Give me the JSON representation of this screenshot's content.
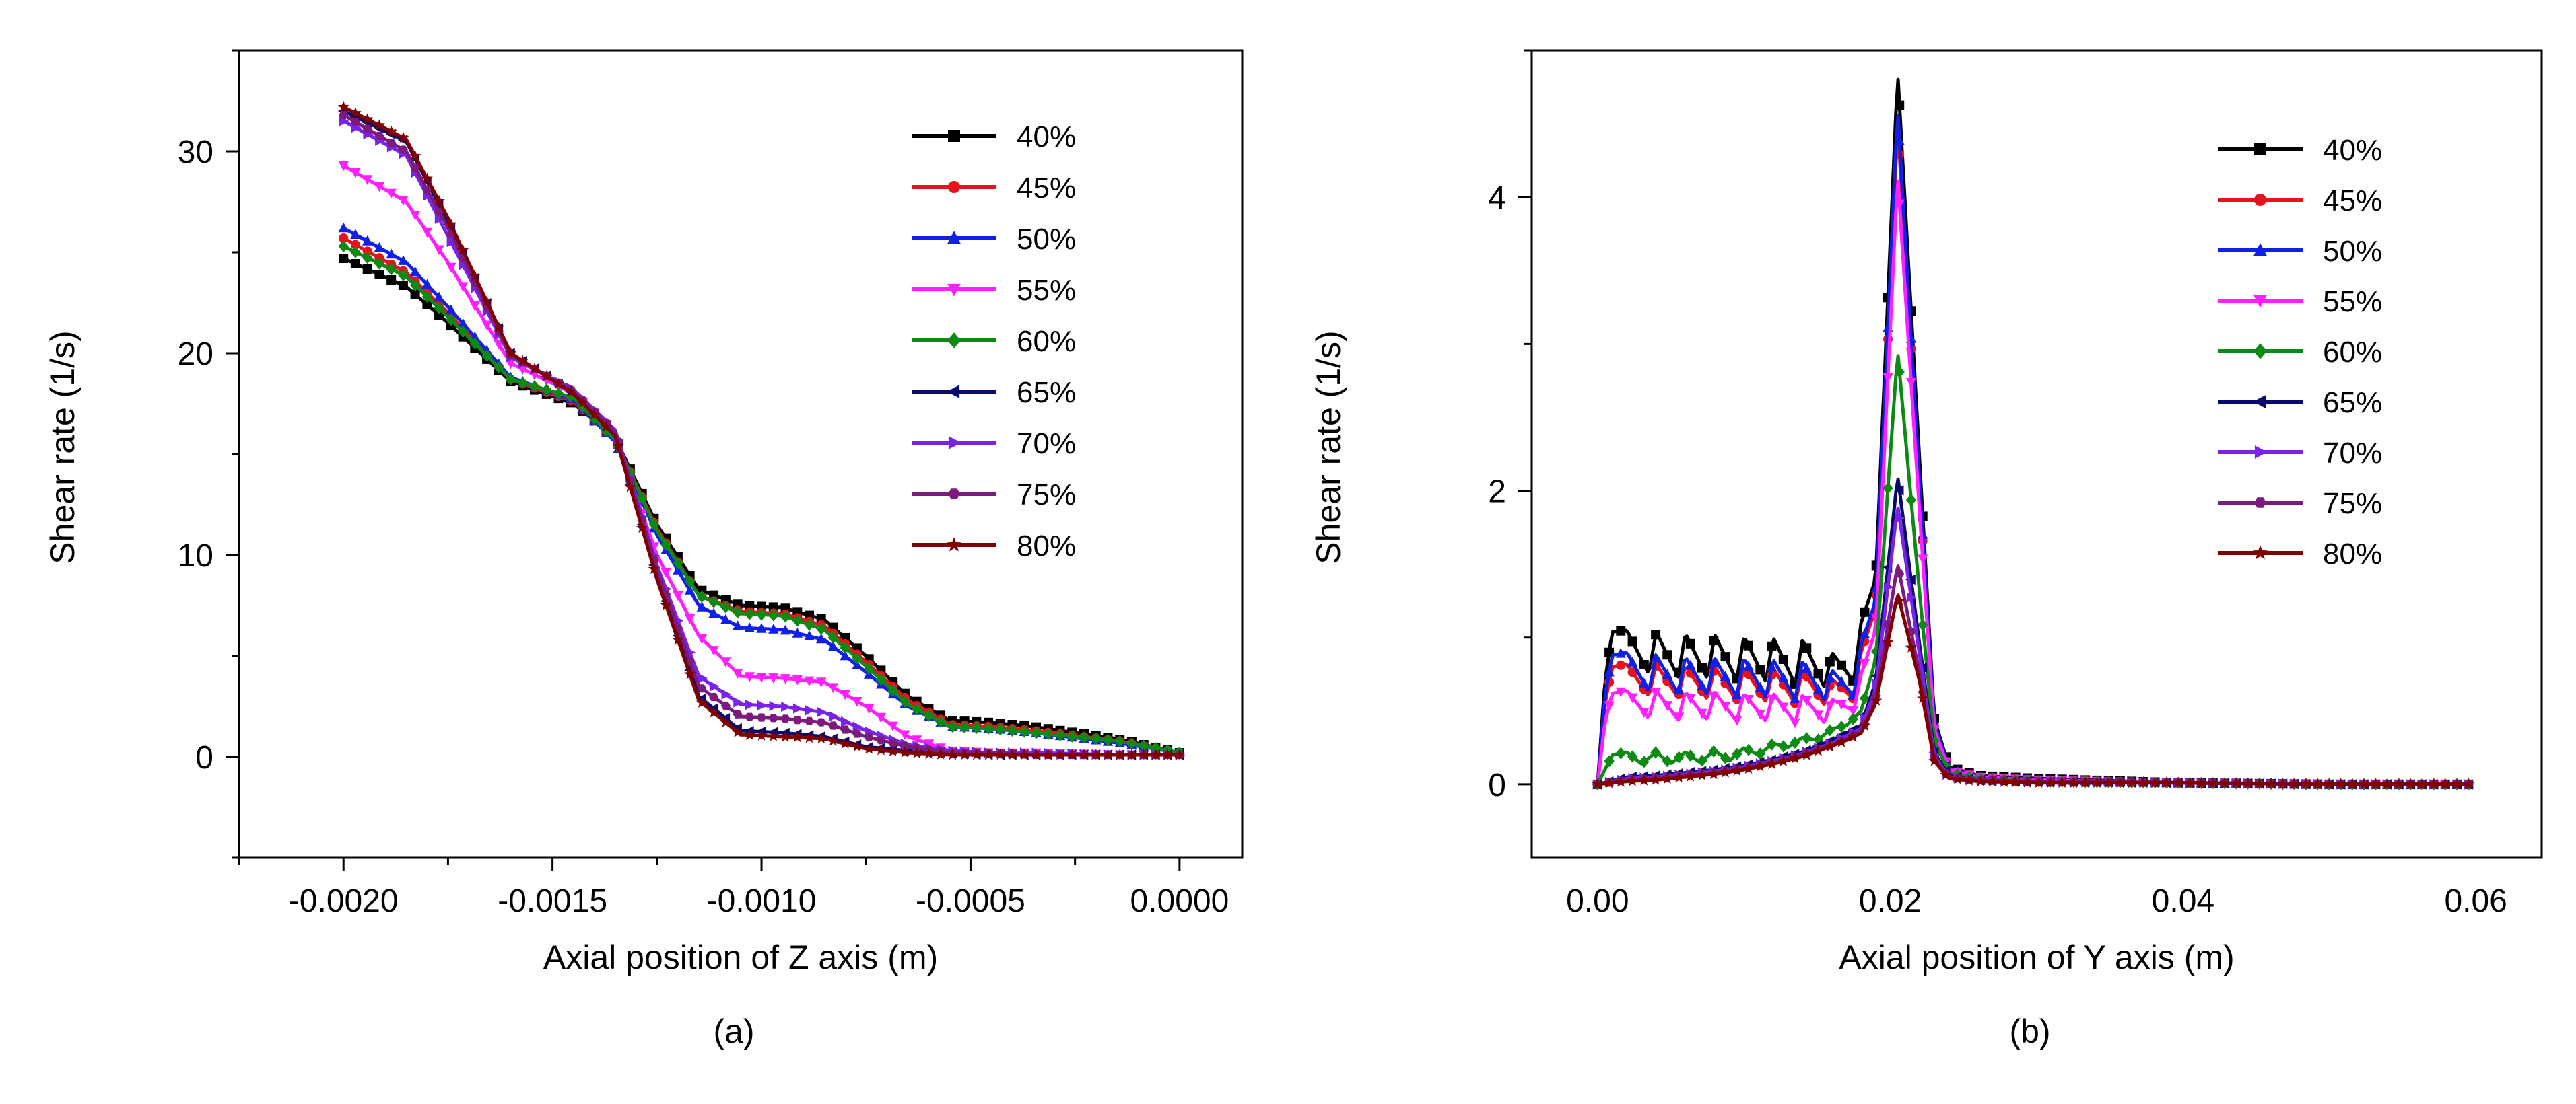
{
  "chart_data": [
    {
      "id": "a",
      "type": "line",
      "panel_label": "(a)",
      "xlabel": "Axial position of Z axis (m)",
      "ylabel": "Shear rate (1/s)",
      "xlim": [
        -0.00225,
        0.00015
      ],
      "ylim": [
        -5,
        35
      ],
      "xticks": [
        -0.002,
        -0.0015,
        -0.001,
        -0.0005,
        0.0
      ],
      "xtick_labels": [
        "-0.0020",
        "-0.0015",
        "-0.0010",
        "-0.0005",
        "0.0000"
      ],
      "yticks": [
        0,
        10,
        20,
        30
      ],
      "ytick_labels": [
        "0",
        "10",
        "20",
        "30"
      ],
      "legend_position": "top-right",
      "marker_count": 70,
      "series": [
        {
          "name": "40%",
          "color": "#000000",
          "marker": "square",
          "x": [
            -0.002,
            -0.00185,
            -0.00175,
            -0.0016,
            -0.00145,
            -0.00135,
            -0.00125,
            -0.00115,
            -0.00105,
            -0.00095,
            -0.00085,
            -0.00075,
            -0.00065,
            -0.00055,
            -0.00045,
            -0.00035,
            -0.00015,
            0.0
          ],
          "y": [
            24.7,
            23.3,
            21.5,
            18.6,
            17.5,
            15.8,
            11.5,
            8.3,
            7.5,
            7.4,
            6.8,
            5,
            3,
            1.8,
            1.7,
            1.5,
            0.9,
            0.2
          ]
        },
        {
          "name": "45%",
          "color": "#e8111d",
          "marker": "circle",
          "x": [
            -0.002,
            -0.00185,
            -0.00175,
            -0.0016,
            -0.00145,
            -0.00135,
            -0.00125,
            -0.00115,
            -0.00105,
            -0.00095,
            -0.00085,
            -0.00075,
            -0.00065,
            -0.00055,
            -0.00045,
            -0.00035,
            -0.00015,
            0.0
          ],
          "y": [
            25.7,
            24,
            22,
            18.7,
            17.6,
            15.7,
            11.3,
            8,
            7.2,
            7.1,
            6.5,
            4.7,
            2.8,
            1.6,
            1.5,
            1.3,
            0.8,
            0.2
          ]
        },
        {
          "name": "50%",
          "color": "#1020e6",
          "marker": "triangle-up",
          "x": [
            -0.002,
            -0.00185,
            -0.00175,
            -0.0016,
            -0.00145,
            -0.00135,
            -0.00125,
            -0.00115,
            -0.00105,
            -0.00095,
            -0.00085,
            -0.00075,
            -0.00065,
            -0.00055,
            -0.00045,
            -0.00035,
            -0.00015,
            0.0
          ],
          "y": [
            26.2,
            24.5,
            22.3,
            18.8,
            17.7,
            15.6,
            11,
            7.5,
            6.4,
            6.3,
            5.8,
            4.2,
            2.5,
            1.5,
            1.4,
            1.2,
            0.7,
            0.2
          ]
        },
        {
          "name": "55%",
          "color": "#ff1fff",
          "marker": "triangle-down",
          "x": [
            -0.002,
            -0.00185,
            -0.00175,
            -0.0016,
            -0.00145,
            -0.00135,
            -0.00125,
            -0.00115,
            -0.00105,
            -0.00095,
            -0.00085,
            -0.00075,
            -0.00065,
            -0.00055,
            -0.00045,
            -0.00035,
            -0.00015,
            0.0
          ],
          "y": [
            29.3,
            27.5,
            24.5,
            19.5,
            18,
            15.8,
            10,
            6,
            4,
            3.9,
            3.7,
            2.5,
            1,
            0.3,
            0.2,
            0.2,
            0.1,
            0.1
          ]
        },
        {
          "name": "60%",
          "color": "#0d8a14",
          "marker": "diamond",
          "x": [
            -0.002,
            -0.00185,
            -0.00175,
            -0.0016,
            -0.00145,
            -0.00135,
            -0.00125,
            -0.00115,
            -0.00105,
            -0.00095,
            -0.00085,
            -0.00075,
            -0.00065,
            -0.00055,
            -0.00045,
            -0.00035,
            -0.00015,
            0.0
          ],
          "y": [
            25.3,
            23.8,
            21.8,
            18.7,
            17.8,
            15.7,
            11.2,
            8,
            7.1,
            7,
            6.3,
            4.5,
            2.6,
            1.5,
            1.4,
            1.2,
            0.8,
            0.2
          ]
        },
        {
          "name": "65%",
          "color": "#0a0a6e",
          "marker": "triangle-left",
          "x": [
            -0.002,
            -0.00185,
            -0.00175,
            -0.0016,
            -0.00145,
            -0.00135,
            -0.00125,
            -0.00115,
            -0.00105,
            -0.00095,
            -0.00085,
            -0.00075,
            -0.00065,
            -0.00055,
            -0.00045,
            -0.00035,
            -0.00015,
            0.0
          ],
          "y": [
            32,
            30.5,
            26.5,
            20,
            18,
            16,
            9,
            3,
            1.3,
            1.2,
            1,
            0.5,
            0.3,
            0.2,
            0.1,
            0.1,
            0.1,
            0.1
          ]
        },
        {
          "name": "70%",
          "color": "#7a22e8",
          "marker": "triangle-right",
          "x": [
            -0.002,
            -0.00185,
            -0.00175,
            -0.0016,
            -0.00145,
            -0.00135,
            -0.00125,
            -0.00115,
            -0.00105,
            -0.00095,
            -0.00085,
            -0.00075,
            -0.00065,
            -0.00055,
            -0.00045,
            -0.00035,
            -0.00015,
            0.0
          ],
          "y": [
            31.5,
            29.8,
            25.8,
            19.8,
            18.2,
            16.2,
            9.5,
            4,
            2.6,
            2.5,
            2.2,
            1.3,
            0.6,
            0.3,
            0.2,
            0.2,
            0.1,
            0.1
          ]
        },
        {
          "name": "75%",
          "color": "#7d1a7d",
          "marker": "hexagon",
          "x": [
            -0.002,
            -0.00185,
            -0.00175,
            -0.0016,
            -0.00145,
            -0.00135,
            -0.00125,
            -0.00115,
            -0.00105,
            -0.00095,
            -0.00085,
            -0.00075,
            -0.00065,
            -0.00055,
            -0.00045,
            -0.00035,
            -0.00015,
            0.0
          ],
          "y": [
            31.8,
            30,
            26.2,
            19.9,
            18.1,
            16.1,
            9.3,
            3.5,
            2,
            1.9,
            1.7,
            1,
            0.5,
            0.2,
            0.2,
            0.1,
            0.1,
            0.1
          ]
        },
        {
          "name": "80%",
          "color": "#800000",
          "marker": "star",
          "x": [
            -0.002,
            -0.00185,
            -0.00175,
            -0.0016,
            -0.00145,
            -0.00135,
            -0.00125,
            -0.00115,
            -0.00105,
            -0.00095,
            -0.00085,
            -0.00075,
            -0.00065,
            -0.00055,
            -0.00045,
            -0.00035,
            -0.00015,
            0.0
          ],
          "y": [
            32.2,
            30.6,
            26.7,
            20,
            18,
            15.9,
            8.8,
            2.8,
            1.1,
            1,
            0.9,
            0.4,
            0.2,
            0.1,
            0.1,
            0.1,
            0.1,
            0.1
          ]
        }
      ]
    },
    {
      "id": "b",
      "type": "line",
      "panel_label": "(b)",
      "xlabel": "Axial position of Y axis (m)",
      "ylabel": "Shear rate (1/s)",
      "xlim": [
        -0.0045,
        0.0645
      ],
      "ylim": [
        -0.5,
        5.0
      ],
      "xticks": [
        0.0,
        0.02,
        0.04,
        0.06
      ],
      "xtick_labels": [
        "0.00",
        "0.02",
        "0.04",
        "0.06"
      ],
      "yticks": [
        0,
        2,
        4
      ],
      "ytick_labels": [
        "0",
        "2",
        "4"
      ],
      "legend_position": "top-right",
      "marker_count": 75,
      "series": [
        {
          "name": "40%",
          "color": "#000000",
          "marker": "square",
          "x": [
            0,
            0.0005,
            0.001,
            0.002,
            0.0035,
            0.004,
            0.0055,
            0.006,
            0.0075,
            0.008,
            0.0095,
            0.01,
            0.0115,
            0.012,
            0.0135,
            0.014,
            0.0155,
            0.016,
            0.0175,
            0.018,
            0.019,
            0.0205,
            0.022,
            0.023,
            0.024,
            0.026,
            0.03,
            0.04,
            0.05,
            0.0595
          ],
          "y": [
            0,
            0.7,
            1.04,
            1.05,
            0.75,
            1.04,
            0.73,
            1.03,
            0.72,
            1.02,
            0.71,
            1.01,
            0.7,
            1.0,
            0.68,
            0.99,
            0.66,
            0.9,
            0.7,
            1.1,
            1.4,
            4.85,
            2.2,
            0.45,
            0.12,
            0.06,
            0.04,
            0.01,
            0,
            0
          ]
        },
        {
          "name": "45%",
          "color": "#e8111d",
          "marker": "circle",
          "x": [
            0,
            0.0005,
            0.001,
            0.002,
            0.0035,
            0.004,
            0.0055,
            0.006,
            0.0075,
            0.008,
            0.0095,
            0.01,
            0.0115,
            0.012,
            0.0135,
            0.014,
            0.0155,
            0.016,
            0.0175,
            0.018,
            0.019,
            0.0205,
            0.022,
            0.023,
            0.024,
            0.026,
            0.03,
            0.04,
            0.05,
            0.0595
          ],
          "y": [
            0,
            0.55,
            0.8,
            0.82,
            0.6,
            0.82,
            0.59,
            0.81,
            0.58,
            0.8,
            0.57,
            0.8,
            0.56,
            0.79,
            0.55,
            0.78,
            0.54,
            0.72,
            0.58,
            0.9,
            1.2,
            4.5,
            2.0,
            0.4,
            0.1,
            0.05,
            0.03,
            0.01,
            0,
            0
          ]
        },
        {
          "name": "50%",
          "color": "#1020e6",
          "marker": "triangle-up",
          "x": [
            0,
            0.0005,
            0.001,
            0.002,
            0.0035,
            0.004,
            0.0055,
            0.006,
            0.0075,
            0.008,
            0.0095,
            0.01,
            0.0115,
            0.012,
            0.0135,
            0.014,
            0.0155,
            0.016,
            0.0175,
            0.018,
            0.019,
            0.0205,
            0.022,
            0.023,
            0.024,
            0.026,
            0.03,
            0.04,
            0.05,
            0.0595
          ],
          "y": [
            0,
            0.6,
            0.88,
            0.9,
            0.63,
            0.88,
            0.62,
            0.87,
            0.61,
            0.86,
            0.6,
            0.86,
            0.59,
            0.85,
            0.58,
            0.84,
            0.57,
            0.78,
            0.6,
            0.95,
            1.25,
            4.6,
            2.05,
            0.42,
            0.11,
            0.05,
            0.03,
            0.01,
            0,
            0
          ]
        },
        {
          "name": "55%",
          "color": "#ff1fff",
          "marker": "triangle-down",
          "x": [
            0,
            0.0005,
            0.001,
            0.002,
            0.0035,
            0.004,
            0.0055,
            0.006,
            0.0075,
            0.008,
            0.0095,
            0.01,
            0.0115,
            0.012,
            0.0135,
            0.014,
            0.0155,
            0.016,
            0.0175,
            0.018,
            0.019,
            0.0205,
            0.022,
            0.023,
            0.024,
            0.026,
            0.03,
            0.04,
            0.05,
            0.0595
          ],
          "y": [
            0,
            0.42,
            0.62,
            0.64,
            0.45,
            0.64,
            0.44,
            0.63,
            0.44,
            0.63,
            0.43,
            0.62,
            0.43,
            0.62,
            0.42,
            0.61,
            0.42,
            0.58,
            0.5,
            0.75,
            1.05,
            4.15,
            1.85,
            0.38,
            0.1,
            0.05,
            0.03,
            0.01,
            0,
            0
          ]
        },
        {
          "name": "60%",
          "color": "#0d8a14",
          "marker": "diamond",
          "x": [
            0,
            0.001,
            0.002,
            0.003,
            0.004,
            0.005,
            0.006,
            0.007,
            0.008,
            0.009,
            0.01,
            0.011,
            0.012,
            0.013,
            0.014,
            0.015,
            0.016,
            0.017,
            0.018,
            0.019,
            0.0205,
            0.022,
            0.023,
            0.024,
            0.026,
            0.03,
            0.04,
            0.05,
            0.0595
          ],
          "y": [
            0,
            0.2,
            0.22,
            0.14,
            0.22,
            0.14,
            0.22,
            0.15,
            0.23,
            0.16,
            0.25,
            0.2,
            0.28,
            0.25,
            0.32,
            0.3,
            0.38,
            0.4,
            0.5,
            0.85,
            2.95,
            1.3,
            0.3,
            0.08,
            0.04,
            0.02,
            0.01,
            0,
            0
          ]
        },
        {
          "name": "65%",
          "color": "#0a0a6e",
          "marker": "triangle-left",
          "x": [
            0,
            0.002,
            0.004,
            0.006,
            0.008,
            0.01,
            0.012,
            0.014,
            0.016,
            0.017,
            0.018,
            0.019,
            0.0205,
            0.022,
            0.023,
            0.024,
            0.026,
            0.03,
            0.04,
            0.05,
            0.0595
          ],
          "y": [
            0,
            0.05,
            0.06,
            0.08,
            0.1,
            0.13,
            0.17,
            0.22,
            0.3,
            0.35,
            0.4,
            0.7,
            2.1,
            0.95,
            0.22,
            0.06,
            0.03,
            0.02,
            0.01,
            0,
            0
          ]
        },
        {
          "name": "70%",
          "color": "#7a22e8",
          "marker": "triangle-right",
          "x": [
            0,
            0.002,
            0.004,
            0.006,
            0.008,
            0.01,
            0.012,
            0.014,
            0.016,
            0.017,
            0.018,
            0.019,
            0.0205,
            0.022,
            0.023,
            0.024,
            0.026,
            0.03,
            0.04,
            0.05,
            0.0595
          ],
          "y": [
            0,
            0.04,
            0.05,
            0.07,
            0.09,
            0.12,
            0.16,
            0.21,
            0.28,
            0.33,
            0.38,
            0.65,
            1.9,
            0.88,
            0.2,
            0.05,
            0.03,
            0.02,
            0.01,
            0,
            0
          ]
        },
        {
          "name": "75%",
          "color": "#7d1a7d",
          "marker": "hexagon",
          "x": [
            0,
            0.002,
            0.004,
            0.006,
            0.008,
            0.01,
            0.012,
            0.014,
            0.016,
            0.017,
            0.018,
            0.019,
            0.0205,
            0.022,
            0.023,
            0.024,
            0.026,
            0.03,
            0.04,
            0.05,
            0.0595
          ],
          "y": [
            0,
            0.03,
            0.04,
            0.06,
            0.08,
            0.11,
            0.15,
            0.2,
            0.27,
            0.31,
            0.36,
            0.58,
            1.5,
            0.75,
            0.18,
            0.05,
            0.03,
            0.02,
            0.01,
            0,
            0
          ]
        },
        {
          "name": "80%",
          "color": "#800000",
          "marker": "star",
          "x": [
            0,
            0.002,
            0.004,
            0.006,
            0.008,
            0.01,
            0.012,
            0.014,
            0.016,
            0.017,
            0.018,
            0.019,
            0.0205,
            0.022,
            0.023,
            0.024,
            0.026,
            0.03,
            0.04,
            0.05,
            0.0595
          ],
          "y": [
            0,
            0.02,
            0.03,
            0.05,
            0.07,
            0.1,
            0.14,
            0.19,
            0.26,
            0.3,
            0.35,
            0.55,
            1.3,
            0.7,
            0.16,
            0.04,
            0.02,
            0.01,
            0.01,
            0,
            0
          ]
        }
      ]
    }
  ]
}
